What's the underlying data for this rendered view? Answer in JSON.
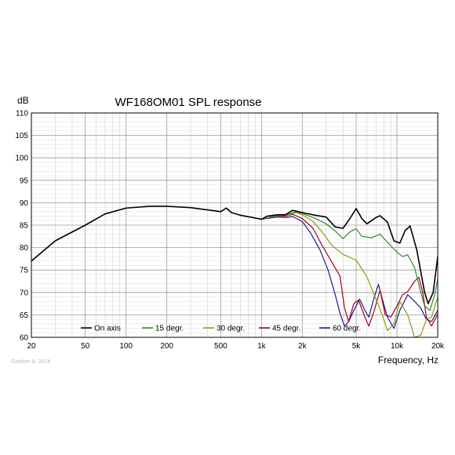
{
  "chart_data": {
    "type": "line",
    "title": "WF168OM01  SPL response",
    "ylabel": "dB",
    "xlabel": "Frequency, Hz",
    "x_scale": "log",
    "xlim": [
      20,
      20000
    ],
    "ylim": [
      60,
      110
    ],
    "grid": true,
    "legend_placement": "bottom",
    "date_stamp": "October 8, 2014",
    "x_ticks": [
      {
        "value": 20,
        "label": "20"
      },
      {
        "value": 50,
        "label": "50"
      },
      {
        "value": 100,
        "label": "100"
      },
      {
        "value": 200,
        "label": "200"
      },
      {
        "value": 500,
        "label": "500"
      },
      {
        "value": 1000,
        "label": "1k"
      },
      {
        "value": 2000,
        "label": "2k"
      },
      {
        "value": 5000,
        "label": "5k"
      },
      {
        "value": 10000,
        "label": "10k"
      },
      {
        "value": 20000,
        "label": "20k"
      }
    ],
    "y_ticks": [
      60,
      65,
      70,
      75,
      80,
      85,
      90,
      95,
      100,
      105,
      110
    ],
    "series": [
      {
        "name": "On axis",
        "color": "#000000",
        "points": [
          [
            20,
            77
          ],
          [
            30,
            81.5
          ],
          [
            50,
            85
          ],
          [
            70,
            87.5
          ],
          [
            100,
            88.8
          ],
          [
            150,
            89.2
          ],
          [
            200,
            89.2
          ],
          [
            300,
            88.9
          ],
          [
            450,
            88.2
          ],
          [
            500,
            88
          ],
          [
            550,
            88.8
          ],
          [
            600,
            87.8
          ],
          [
            700,
            87.2
          ],
          [
            900,
            86.6
          ],
          [
            1000,
            86.3
          ],
          [
            1100,
            87
          ],
          [
            1300,
            87.3
          ],
          [
            1500,
            87.3
          ],
          [
            1700,
            88.3
          ],
          [
            2000,
            87.8
          ],
          [
            2500,
            87.2
          ],
          [
            3000,
            86.8
          ],
          [
            3500,
            84.6
          ],
          [
            4000,
            84.3
          ],
          [
            4500,
            86.5
          ],
          [
            5000,
            88.7
          ],
          [
            5500,
            86.5
          ],
          [
            6000,
            85.3
          ],
          [
            7000,
            86.7
          ],
          [
            7500,
            87.1
          ],
          [
            8500,
            85.7
          ],
          [
            9500,
            81.5
          ],
          [
            10500,
            81
          ],
          [
            11500,
            83.8
          ],
          [
            12500,
            84.8
          ],
          [
            14000,
            79.5
          ],
          [
            16000,
            70
          ],
          [
            17000,
            67.5
          ],
          [
            18500,
            70
          ],
          [
            20000,
            78
          ]
        ]
      },
      {
        "name": "15 degr.",
        "color": "#2e8b2e",
        "points": [
          [
            700,
            87.2
          ],
          [
            1000,
            86.3
          ],
          [
            1300,
            87.2
          ],
          [
            1600,
            87.5
          ],
          [
            1800,
            88
          ],
          [
            2000,
            87.6
          ],
          [
            2500,
            86.5
          ],
          [
            3000,
            85.3
          ],
          [
            3500,
            83.7
          ],
          [
            4000,
            82
          ],
          [
            4500,
            83.5
          ],
          [
            5000,
            84.2
          ],
          [
            5500,
            82.5
          ],
          [
            6500,
            82.2
          ],
          [
            7500,
            83
          ],
          [
            8500,
            81.2
          ],
          [
            10000,
            79
          ],
          [
            11000,
            78
          ],
          [
            12000,
            78.4
          ],
          [
            13500,
            75.5
          ],
          [
            15000,
            70
          ],
          [
            16000,
            67
          ],
          [
            17500,
            66
          ],
          [
            19000,
            69.5
          ],
          [
            20000,
            73
          ]
        ]
      },
      {
        "name": "30 degr.",
        "color": "#8f9a1a",
        "points": [
          [
            700,
            87.2
          ],
          [
            1000,
            86.3
          ],
          [
            1300,
            87.1
          ],
          [
            1600,
            87.3
          ],
          [
            1800,
            87.8
          ],
          [
            2000,
            87.3
          ],
          [
            2400,
            85.8
          ],
          [
            2800,
            83.5
          ],
          [
            3300,
            80.5
          ],
          [
            4000,
            78.5
          ],
          [
            5000,
            77.2
          ],
          [
            6000,
            73.5
          ],
          [
            7000,
            68.5
          ],
          [
            7800,
            65
          ],
          [
            8500,
            61.5
          ],
          [
            9500,
            63
          ],
          [
            10500,
            68
          ],
          [
            12000,
            65
          ],
          [
            13500,
            60
          ],
          [
            15000,
            60.5
          ],
          [
            16500,
            64
          ],
          [
            18000,
            64.5
          ],
          [
            20000,
            69
          ]
        ]
      },
      {
        "name": "45 degr.",
        "color": "#a3001f",
        "points": [
          [
            700,
            87.2
          ],
          [
            1000,
            86.3
          ],
          [
            1300,
            87
          ],
          [
            1500,
            87
          ],
          [
            1700,
            87.4
          ],
          [
            2000,
            86.5
          ],
          [
            2400,
            84.3
          ],
          [
            2800,
            80.5
          ],
          [
            3300,
            76.8
          ],
          [
            3800,
            73.6
          ],
          [
            4100,
            66.5
          ],
          [
            4400,
            63.5
          ],
          [
            4800,
            67.5
          ],
          [
            5200,
            68.3
          ],
          [
            5800,
            64.5
          ],
          [
            6200,
            62.5
          ],
          [
            6800,
            66
          ],
          [
            7500,
            70.5
          ],
          [
            8200,
            65
          ],
          [
            9000,
            64.5
          ],
          [
            10000,
            67
          ],
          [
            11000,
            69.5
          ],
          [
            12000,
            70.2
          ],
          [
            13500,
            72.5
          ],
          [
            14500,
            73.4
          ],
          [
            15500,
            70
          ],
          [
            16500,
            64.5
          ],
          [
            18000,
            62.5
          ],
          [
            20000,
            65.2
          ]
        ]
      },
      {
        "name": "60 degr.",
        "color": "#1c1c85",
        "points": [
          [
            700,
            87.2
          ],
          [
            1000,
            86.3
          ],
          [
            1300,
            86.8
          ],
          [
            1500,
            86.7
          ],
          [
            1700,
            86.9
          ],
          [
            2000,
            85.8
          ],
          [
            2300,
            83.3
          ],
          [
            2700,
            79.5
          ],
          [
            3100,
            75
          ],
          [
            3500,
            69.5
          ],
          [
            3800,
            65.3
          ],
          [
            4100,
            62.5
          ],
          [
            4400,
            63.5
          ],
          [
            4800,
            66
          ],
          [
            5300,
            68.5
          ],
          [
            5800,
            66
          ],
          [
            6200,
            64.5
          ],
          [
            6800,
            69
          ],
          [
            7300,
            71.8
          ],
          [
            7800,
            68.5
          ],
          [
            8500,
            64.5
          ],
          [
            9500,
            62
          ],
          [
            10500,
            66
          ],
          [
            12000,
            69.5
          ],
          [
            13500,
            68
          ],
          [
            15000,
            66.5
          ],
          [
            16500,
            64
          ],
          [
            18000,
            63.5
          ],
          [
            20000,
            66
          ]
        ]
      }
    ]
  }
}
